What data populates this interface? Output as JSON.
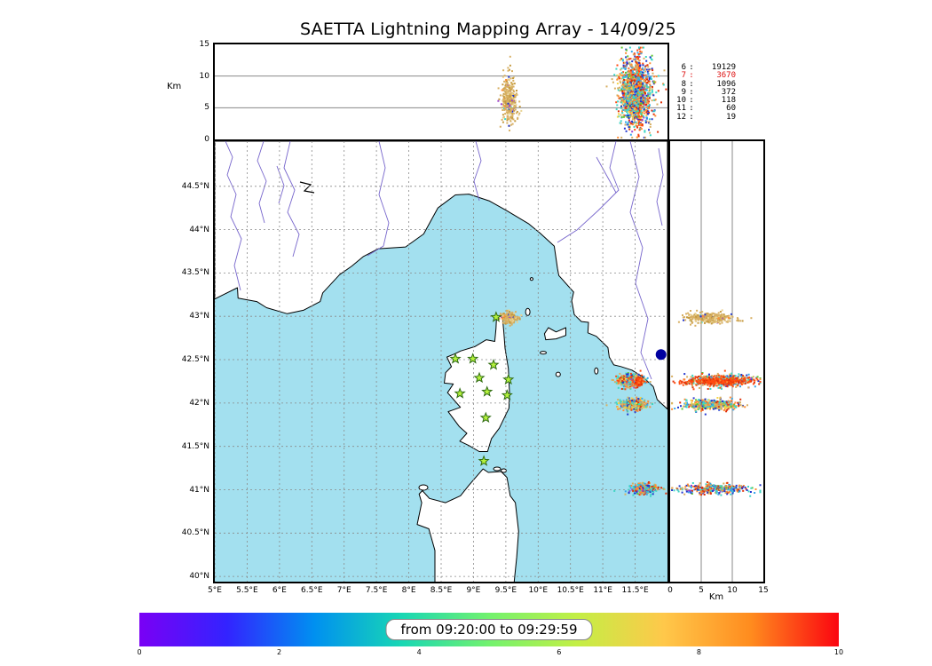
{
  "title": "SAETTA Lightning Mapping Array - 14/09/25",
  "stats_panel": {
    "rows": [
      {
        "level": "6",
        "count": "19129",
        "color": "#000000"
      },
      {
        "level": "7",
        "count": "3670",
        "color": "#dd1111"
      },
      {
        "level": "8",
        "count": "1096",
        "color": "#000000"
      },
      {
        "level": "9",
        "count": "372",
        "color": "#000000"
      },
      {
        "level": "10",
        "count": "118",
        "color": "#000000"
      },
      {
        "level": "11",
        "count": "60",
        "color": "#000000"
      },
      {
        "level": "12",
        "count": "19",
        "color": "#000000"
      }
    ]
  },
  "chart_data": {
    "type": "scatter",
    "title": "SAETTA Lightning Mapping Array - 14/09/25",
    "map_panel": {
      "lon_range": [
        5.0,
        12.0
      ],
      "lat_range": [
        39.94,
        45.02
      ],
      "x_ticks": [
        "5°E",
        "5.5°E",
        "6°E",
        "6.5°E",
        "7°E",
        "7.5°E",
        "8°E",
        "8.5°E",
        "9°E",
        "9.5°E",
        "10°E",
        "10.5°E",
        "11°E",
        "11.5°E"
      ],
      "y_ticks": [
        "40°N",
        "40.5°N",
        "41°N",
        "41.5°N",
        "42°N",
        "42.5°N",
        "43°N",
        "43.5°N",
        "44°N",
        "44.5°N"
      ],
      "sea_color": "#a3e0ef",
      "land_color": "#ffffff",
      "grid": true
    },
    "altitude_axis": {
      "label": "Km",
      "range": [
        0,
        15
      ],
      "ticks": [
        "0",
        "5",
        "10",
        "15"
      ]
    },
    "time_colorbar": {
      "label": "from 09:20:00 to 09:29:59",
      "range": [
        0,
        10
      ],
      "ticks": [
        "0",
        "2",
        "4",
        "6",
        "8",
        "10"
      ],
      "gradient_stops": [
        "#7a00f5",
        "#3323ff",
        "#0090f0",
        "#18d7b4",
        "#72f26e",
        "#c3ef45",
        "#ffc84a",
        "#ff8b1e",
        "#fb0510"
      ]
    },
    "stations": [
      {
        "lon": 9.35,
        "lat": 42.99
      },
      {
        "lon": 8.72,
        "lat": 42.51
      },
      {
        "lon": 8.99,
        "lat": 42.51
      },
      {
        "lon": 9.31,
        "lat": 42.44
      },
      {
        "lon": 9.09,
        "lat": 42.29
      },
      {
        "lon": 9.54,
        "lat": 42.27
      },
      {
        "lon": 8.79,
        "lat": 42.11
      },
      {
        "lon": 9.21,
        "lat": 42.13
      },
      {
        "lon": 9.52,
        "lat": 42.09
      },
      {
        "lon": 9.19,
        "lat": 41.83
      },
      {
        "lon": 9.16,
        "lat": 41.33
      }
    ],
    "sea_marker": {
      "lon": 11.9,
      "lat": 42.56,
      "color": "#0000a0",
      "radius": 6
    },
    "cells": [
      {
        "name": "cap-corse-cell",
        "n": 320,
        "lon": [
          9.56,
          0.055
        ],
        "lat": [
          42.98,
          0.028
        ],
        "alt": [
          6.0,
          2.0
        ],
        "colors": [
          [
            "#d7af62",
            0.48
          ],
          [
            "#c49a3f",
            0.2
          ],
          [
            "#e9d292",
            0.2
          ],
          [
            "#3fd6c5",
            0.03
          ],
          [
            "#2135cf",
            0.03
          ],
          [
            "#ff8c34",
            0.03
          ],
          [
            "#9b3fd1",
            0.03
          ]
        ]
      },
      {
        "name": "north-cell",
        "n": 520,
        "lon": [
          11.42,
          0.09
        ],
        "lat": [
          42.26,
          0.033
        ],
        "alt": [
          8.0,
          2.6
        ],
        "colors": [
          [
            "#ff4a0e",
            0.18
          ],
          [
            "#e03008",
            0.1
          ],
          [
            "#d7af62",
            0.2
          ],
          [
            "#3fd6c5",
            0.14
          ],
          [
            "#35a7ea",
            0.08
          ],
          [
            "#2135cf",
            0.08
          ],
          [
            "#5fc832",
            0.05
          ],
          [
            "#9b3fd1",
            0.04
          ],
          [
            "#f5d44a",
            0.07
          ],
          [
            "#ff8c34",
            0.06
          ]
        ]
      },
      {
        "name": "north-cell-core",
        "n": 260,
        "lon": [
          11.56,
          0.022
        ],
        "lat": [
          42.25,
          0.02
        ],
        "alt": [
          7.5,
          2.9
        ],
        "colors": [
          [
            "#ff4a0e",
            0.62
          ],
          [
            "#e03008",
            0.28
          ],
          [
            "#ff8c34",
            0.1
          ]
        ]
      },
      {
        "name": "mid-cell",
        "n": 420,
        "lon": [
          11.47,
          0.1
        ],
        "lat": [
          41.98,
          0.03
        ],
        "alt": [
          6.6,
          2.3
        ],
        "colors": [
          [
            "#d7af62",
            0.26
          ],
          [
            "#ff8c34",
            0.16
          ],
          [
            "#f5d44a",
            0.1
          ],
          [
            "#3fd6c5",
            0.14
          ],
          [
            "#35a7ea",
            0.08
          ],
          [
            "#2135cf",
            0.1
          ],
          [
            "#e03008",
            0.09
          ],
          [
            "#5fc832",
            0.07
          ]
        ]
      },
      {
        "name": "south-cell",
        "n": 340,
        "lon": [
          11.64,
          0.1
        ],
        "lat": [
          41.01,
          0.028
        ],
        "alt": [
          7.2,
          2.7
        ],
        "colors": [
          [
            "#2135cf",
            0.16
          ],
          [
            "#35a7ea",
            0.14
          ],
          [
            "#3fd6c5",
            0.16
          ],
          [
            "#ff8c34",
            0.18
          ],
          [
            "#e03008",
            0.13
          ],
          [
            "#d7af62",
            0.16
          ],
          [
            "#5fc832",
            0.04
          ],
          [
            "#9b3fd1",
            0.03
          ]
        ]
      }
    ]
  }
}
